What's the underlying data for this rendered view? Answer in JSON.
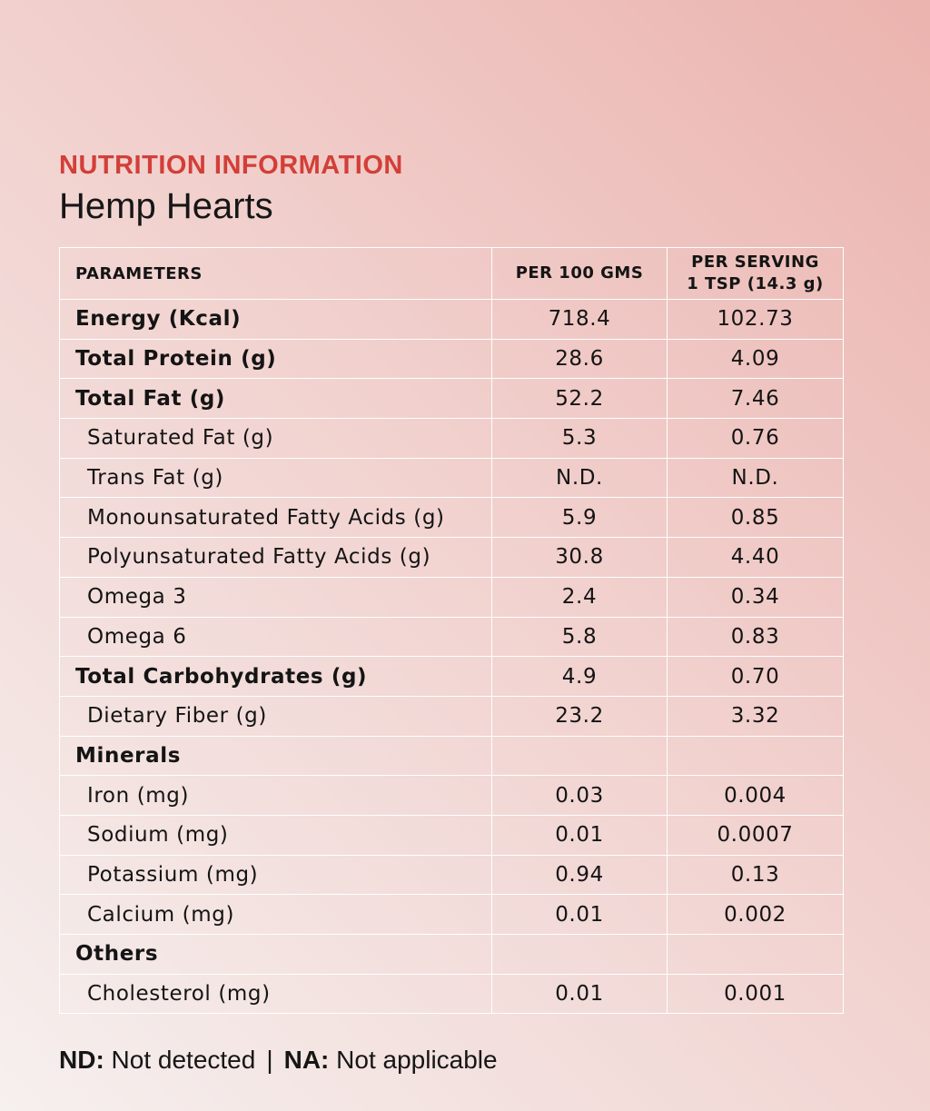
{
  "heading": "NUTRITION INFORMATION",
  "product": "Hemp Hearts",
  "table": {
    "headers": {
      "parameters": "PARAMETERS",
      "per100": "PER 100 GMS",
      "serving_line1": "PER SERVING",
      "serving_line2": "1 TSP (14.3 g)"
    },
    "rows": [
      {
        "label": "Energy (Kcal)",
        "per100": "718.4",
        "serving": "102.73"
      },
      {
        "label": "Total Protein (g)",
        "per100": "28.6",
        "serving": "4.09"
      },
      {
        "label": "Total Fat (g)",
        "per100": "52.2",
        "serving": "7.46"
      },
      {
        "label": "Saturated Fat (g)",
        "per100": "5.3",
        "serving": "0.76"
      },
      {
        "label": "Trans Fat (g)",
        "per100": "N.D.",
        "serving": "N.D."
      },
      {
        "label": "Monounsaturated Fatty Acids (g)",
        "per100": "5.9",
        "serving": "0.85"
      },
      {
        "label": "Polyunsaturated Fatty Acids (g)",
        "per100": "30.8",
        "serving": "4.40"
      },
      {
        "label": "Omega 3",
        "per100": "2.4",
        "serving": "0.34"
      },
      {
        "label": "Omega 6",
        "per100": "5.8",
        "serving": "0.83"
      },
      {
        "label": "Total Carbohydrates (g)",
        "per100": "4.9",
        "serving": "0.70"
      },
      {
        "label": "Dietary Fiber (g)",
        "per100": "23.2",
        "serving": "3.32"
      },
      {
        "label": "Minerals",
        "per100": "",
        "serving": ""
      },
      {
        "label": "Iron (mg)",
        "per100": "0.03",
        "serving": "0.004"
      },
      {
        "label": "Sodium (mg)",
        "per100": "0.01",
        "serving": "0.0007"
      },
      {
        "label": "Potassium (mg)",
        "per100": "0.94",
        "serving": "0.13"
      },
      {
        "label": "Calcium (mg)",
        "per100": "0.01",
        "serving": "0.002"
      },
      {
        "label": "Others",
        "per100": "",
        "serving": ""
      },
      {
        "label": "Cholesterol (mg)",
        "per100": "0.01",
        "serving": "0.001"
      }
    ]
  },
  "footer": {
    "nd_abbr": "ND:",
    "nd_text": " Not detected",
    "separator": "|",
    "na_abbr": "NA:",
    "na_text": " Not applicable"
  },
  "colors": {
    "heading": "#d23f38",
    "grid_lines": "#ffffff",
    "background_light": "#f6f0ef",
    "background_dark": "#ebb3ae"
  }
}
